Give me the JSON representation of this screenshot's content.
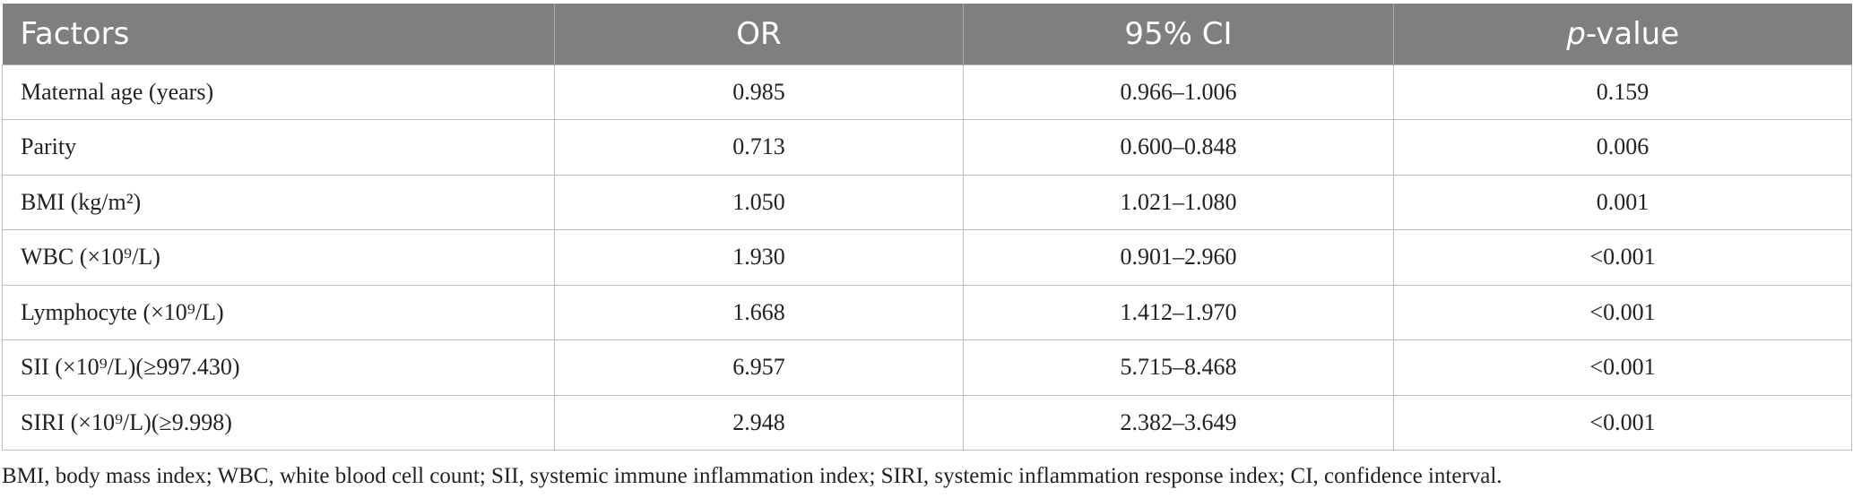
{
  "table": {
    "headers": {
      "factors": "Factors",
      "or": "OR",
      "ci": "95% CI",
      "p_italic": "p",
      "p_rest": "-value"
    },
    "rows": [
      {
        "factor": "Maternal age (years)",
        "or": "0.985",
        "ci": "0.966–1.006",
        "p": "0.159"
      },
      {
        "factor": "Parity",
        "or": "0.713",
        "ci": "0.600–0.848",
        "p": "0.006"
      },
      {
        "factor": "BMI (kg/m²)",
        "or": "1.050",
        "ci": "1.021–1.080",
        "p": "0.001"
      },
      {
        "factor": "WBC (×10⁹/L)",
        "or": "1.930",
        "ci": "0.901–2.960",
        "p": "<0.001"
      },
      {
        "factor": "Lymphocyte (×10⁹/L)",
        "or": "1.668",
        "ci": "1.412–1.970",
        "p": "<0.001"
      },
      {
        "factor": "SII (×10⁹/L)(≥997.430)",
        "or": "6.957",
        "ci": "5.715–8.468",
        "p": "<0.001"
      },
      {
        "factor": "SIRI (×10⁹/L)(≥9.998)",
        "or": "2.948",
        "ci": "2.382–3.649",
        "p": "<0.001"
      }
    ]
  },
  "footnote": "BMI, body mass index; WBC, white blood cell count; SII, systemic immune inflammation index; SIRI, systemic inflammation response index; CI, confidence interval.",
  "colors": {
    "header_bg": "#7f7f7e",
    "header_text": "#ffffff",
    "grid": "#bdbdbd"
  }
}
